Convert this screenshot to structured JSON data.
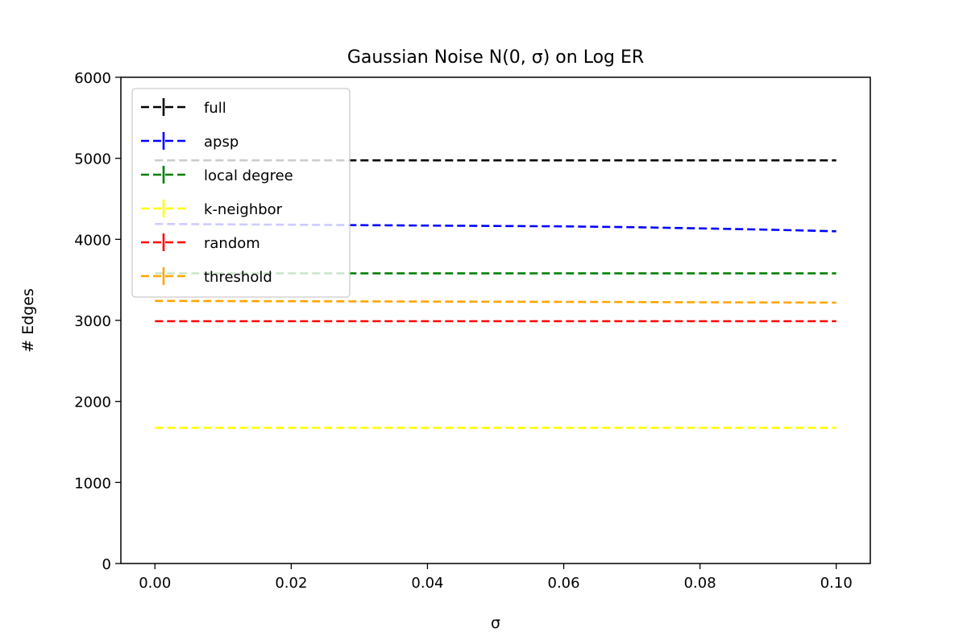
{
  "chart_data": {
    "type": "line",
    "title": "Gaussian Noise N(0, σ) on Log ER",
    "xlabel": "σ",
    "ylabel": "# Edges",
    "xlim": [
      -0.005,
      0.105
    ],
    "ylim": [
      0,
      6000
    ],
    "xticks": [
      "0.00",
      "0.02",
      "0.04",
      "0.06",
      "0.08",
      "0.10"
    ],
    "xtick_values": [
      0.0,
      0.02,
      0.04,
      0.06,
      0.08,
      0.1
    ],
    "yticks": [
      "0",
      "1000",
      "2000",
      "3000",
      "4000",
      "5000",
      "6000"
    ],
    "ytick_values": [
      0,
      1000,
      2000,
      3000,
      4000,
      5000,
      6000
    ],
    "grid": false,
    "legend_position": "upper-left",
    "x": [
      0.0,
      0.01,
      0.02,
      0.03,
      0.04,
      0.05,
      0.06,
      0.07,
      0.08,
      0.09,
      0.1
    ],
    "series": [
      {
        "name": "full",
        "color": "#000000",
        "line_style": "dashed",
        "values": [
          4975,
          4975,
          4975,
          4975,
          4975,
          4975,
          4975,
          4975,
          4975,
          4975,
          4975
        ]
      },
      {
        "name": "apsp",
        "color": "#0000ff",
        "line_style": "dashed",
        "values": [
          4190,
          4185,
          4180,
          4175,
          4170,
          4165,
          4160,
          4150,
          4135,
          4120,
          4100
        ]
      },
      {
        "name": "local degree",
        "color": "#008000",
        "line_style": "dashed",
        "values": [
          3580,
          3580,
          3580,
          3580,
          3580,
          3580,
          3580,
          3580,
          3580,
          3580,
          3580
        ]
      },
      {
        "name": "k-neighbor",
        "color": "#ffff00",
        "line_style": "dashed",
        "values": [
          1675,
          1675,
          1675,
          1675,
          1675,
          1675,
          1675,
          1675,
          1675,
          1675,
          1675
        ]
      },
      {
        "name": "random",
        "color": "#ff0000",
        "line_style": "dashed",
        "values": [
          2990,
          2990,
          2990,
          2990,
          2990,
          2990,
          2990,
          2990,
          2990,
          2990,
          2990
        ]
      },
      {
        "name": "threshold",
        "color": "#ffa500",
        "line_style": "dashed",
        "values": [
          3240,
          3238,
          3236,
          3234,
          3232,
          3230,
          3228,
          3226,
          3224,
          3222,
          3220
        ]
      }
    ]
  }
}
